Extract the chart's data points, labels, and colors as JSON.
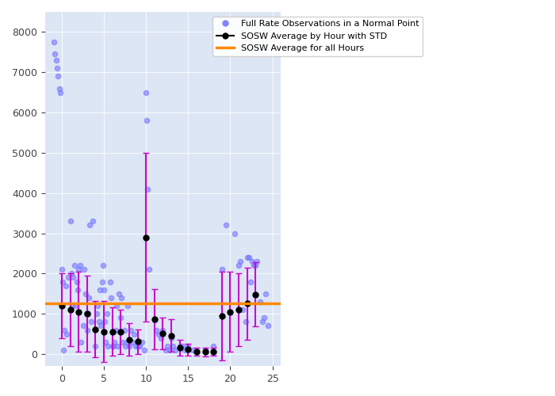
{
  "scatter_color": "#7777ff",
  "scatter_alpha": 0.6,
  "scatter_size": 20,
  "line_color": "black",
  "line_marker": "o",
  "line_marker_size": 5,
  "errorbar_color": "#cc00cc",
  "hline_color": "#ff8800",
  "hline_value": 1250,
  "legend_labels": [
    "Full Rate Observations in a Normal Point",
    "SOSW Average by Hour with STD",
    "SOSW Average for all Hours"
  ],
  "background_color": "#dce6f5",
  "xlim": [
    -2,
    26
  ],
  "ylim": [
    -300,
    8500
  ],
  "scatter_x": [
    -0.9,
    -0.8,
    -0.7,
    -0.6,
    -0.5,
    -0.3,
    -0.2,
    0.0,
    0.1,
    0.2,
    0.3,
    0.5,
    0.6,
    0.8,
    1.0,
    1.1,
    1.2,
    1.3,
    1.5,
    1.6,
    1.8,
    1.9,
    2.0,
    2.2,
    2.3,
    2.5,
    2.6,
    2.8,
    2.9,
    3.0,
    3.1,
    3.2,
    3.3,
    3.5,
    3.7,
    4.0,
    4.1,
    4.2,
    4.4,
    4.5,
    4.6,
    4.8,
    4.9,
    5.0,
    5.1,
    5.2,
    5.4,
    5.5,
    5.7,
    5.8,
    6.0,
    6.1,
    6.2,
    6.4,
    6.5,
    6.6,
    6.8,
    7.0,
    7.1,
    7.2,
    7.4,
    7.5,
    7.7,
    7.8,
    8.0,
    8.2,
    8.4,
    8.6,
    8.8,
    9.0,
    9.2,
    9.5,
    9.8,
    10.0,
    10.1,
    10.2,
    10.4,
    11.0,
    11.2,
    11.5,
    11.8,
    12.0,
    12.3,
    12.5,
    12.8,
    13.0,
    13.2,
    13.5,
    14.0,
    14.3,
    14.6,
    15.0,
    15.5,
    17.0,
    18.0,
    19.0,
    19.5,
    20.5,
    21.0,
    21.2,
    21.5,
    21.8,
    22.0,
    22.2,
    22.4,
    22.6,
    22.8,
    23.0,
    23.2,
    23.5,
    23.8,
    24.0,
    24.2,
    24.5
  ],
  "scatter_y": [
    7750,
    7450,
    7300,
    7100,
    6900,
    6600,
    6500,
    2100,
    1800,
    100,
    600,
    1700,
    500,
    1900,
    3300,
    2000,
    1200,
    1900,
    2200,
    1200,
    1800,
    1600,
    2100,
    2200,
    300,
    700,
    2100,
    1500,
    1000,
    600,
    1000,
    1400,
    3200,
    800,
    3300,
    200,
    1000,
    1200,
    800,
    1600,
    700,
    1800,
    2200,
    1600,
    800,
    300,
    1000,
    200,
    1800,
    1400,
    200,
    200,
    300,
    600,
    1200,
    200,
    1500,
    900,
    1400,
    300,
    600,
    200,
    300,
    1200,
    200,
    600,
    300,
    500,
    200,
    200,
    200,
    300,
    100,
    6500,
    5800,
    4100,
    2100,
    850,
    600,
    500,
    400,
    600,
    100,
    200,
    100,
    400,
    200,
    100,
    200,
    200,
    100,
    200,
    100,
    100,
    200,
    2100,
    3200,
    3000,
    2200,
    2300,
    1100,
    800,
    2400,
    2400,
    1800,
    2300,
    2200,
    2200,
    2300,
    1300,
    800,
    900,
    1500,
    700
  ],
  "hour_x": [
    0,
    1,
    2,
    3,
    4,
    5,
    6,
    7,
    8,
    9,
    10,
    11,
    12,
    13,
    14,
    15,
    16,
    17,
    18,
    19,
    20,
    21,
    22,
    23
  ],
  "hour_mean": [
    1200,
    1100,
    1050,
    1000,
    620,
    560,
    560,
    550,
    360,
    310,
    2900,
    860,
    510,
    460,
    160,
    110,
    60,
    50,
    60,
    950,
    1050,
    1100,
    1250,
    1480
  ],
  "hour_std": [
    800,
    900,
    1000,
    950,
    700,
    750,
    600,
    550,
    400,
    300,
    2100,
    750,
    400,
    400,
    200,
    150,
    100,
    100,
    100,
    1100,
    1000,
    900,
    900,
    800
  ]
}
